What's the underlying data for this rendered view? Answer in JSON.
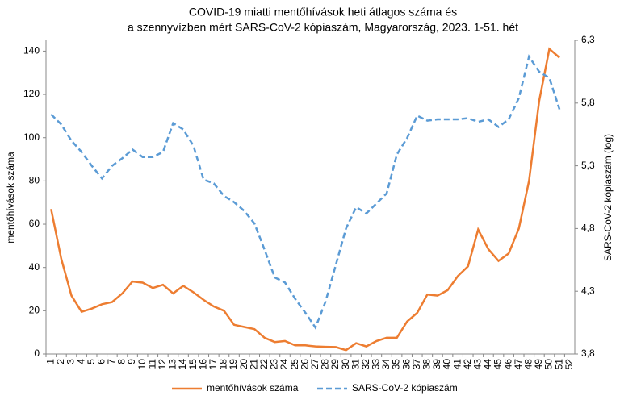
{
  "chart_data": {
    "type": "line",
    "title": [
      "COVID-19 miatti mentőhívások heti átlagos száma és",
      "a szennyvízben mért SARS-CoV-2 kópiaszám, Magyarország, 2023. 1-51. hét"
    ],
    "ylabel": "mentőhívások száma",
    "y2label": "SARS-CoV-2 kópiaszám (log)",
    "categories": [
      "1",
      "2",
      "3",
      "4",
      "5",
      "6",
      "7",
      "8",
      "9",
      "10",
      "11",
      "12",
      "13",
      "14",
      "15",
      "16",
      "17",
      "18",
      "19",
      "20",
      "21",
      "22",
      "23",
      "24",
      "25",
      "26",
      "27",
      "28",
      "29",
      "30",
      "31",
      "32",
      "33",
      "34",
      "35",
      "36",
      "37",
      "38",
      "39",
      "40",
      "41",
      "42",
      "43",
      "44",
      "45",
      "46",
      "47",
      "48",
      "49",
      "50",
      "51",
      "52"
    ],
    "ylim": [
      0,
      145
    ],
    "yticks": [
      0,
      20,
      40,
      60,
      80,
      100,
      120,
      140
    ],
    "y2lim": [
      3.8,
      6.3
    ],
    "y2ticks": [
      {
        "value": 3.8,
        "label": "3,8"
      },
      {
        "value": 4.3,
        "label": "4,3"
      },
      {
        "value": 4.8,
        "label": "4,8"
      },
      {
        "value": 5.3,
        "label": "5,3"
      },
      {
        "value": 5.8,
        "label": "5,8"
      },
      {
        "value": 6.3,
        "label": "6,3"
      }
    ],
    "legend": "bottom",
    "series": [
      {
        "name": "mentőhívások száma",
        "color": "#ED7D31",
        "dashed": false,
        "values": [
          67,
          44,
          27,
          19.5,
          21,
          23,
          24,
          28,
          33.5,
          33,
          30.5,
          32,
          28,
          31.5,
          28.5,
          25,
          22,
          20,
          13.5,
          12.5,
          11.5,
          7.5,
          5.5,
          6,
          4,
          4,
          3.5,
          3.3,
          3.2,
          1.8,
          5,
          3.5,
          6,
          7.5,
          7.5,
          15,
          19,
          27.5,
          27,
          29.5,
          36,
          40.5,
          57.5,
          48.5,
          43,
          46.5,
          58,
          80,
          117,
          141,
          137,
          null
        ]
      },
      {
        "name": "SARS-CoV-2 kópiaszám",
        "color": "#5B9BD5",
        "dashed": true,
        "axis": "y2",
        "values": [
          5.71,
          5.63,
          5.5,
          5.41,
          5.3,
          5.2,
          5.3,
          5.36,
          5.43,
          5.37,
          5.37,
          5.41,
          5.64,
          5.59,
          5.46,
          5.19,
          5.16,
          5.06,
          5.01,
          4.94,
          4.84,
          4.63,
          4.41,
          4.37,
          4.24,
          4.13,
          4.01,
          4.22,
          4.51,
          4.8,
          4.97,
          4.92,
          5,
          5.08,
          5.39,
          5.52,
          5.7,
          5.66,
          5.67,
          5.67,
          5.67,
          5.68,
          5.65,
          5.67,
          5.61,
          5.67,
          5.84,
          6.17,
          6.05,
          6,
          5.75,
          null
        ]
      }
    ]
  }
}
